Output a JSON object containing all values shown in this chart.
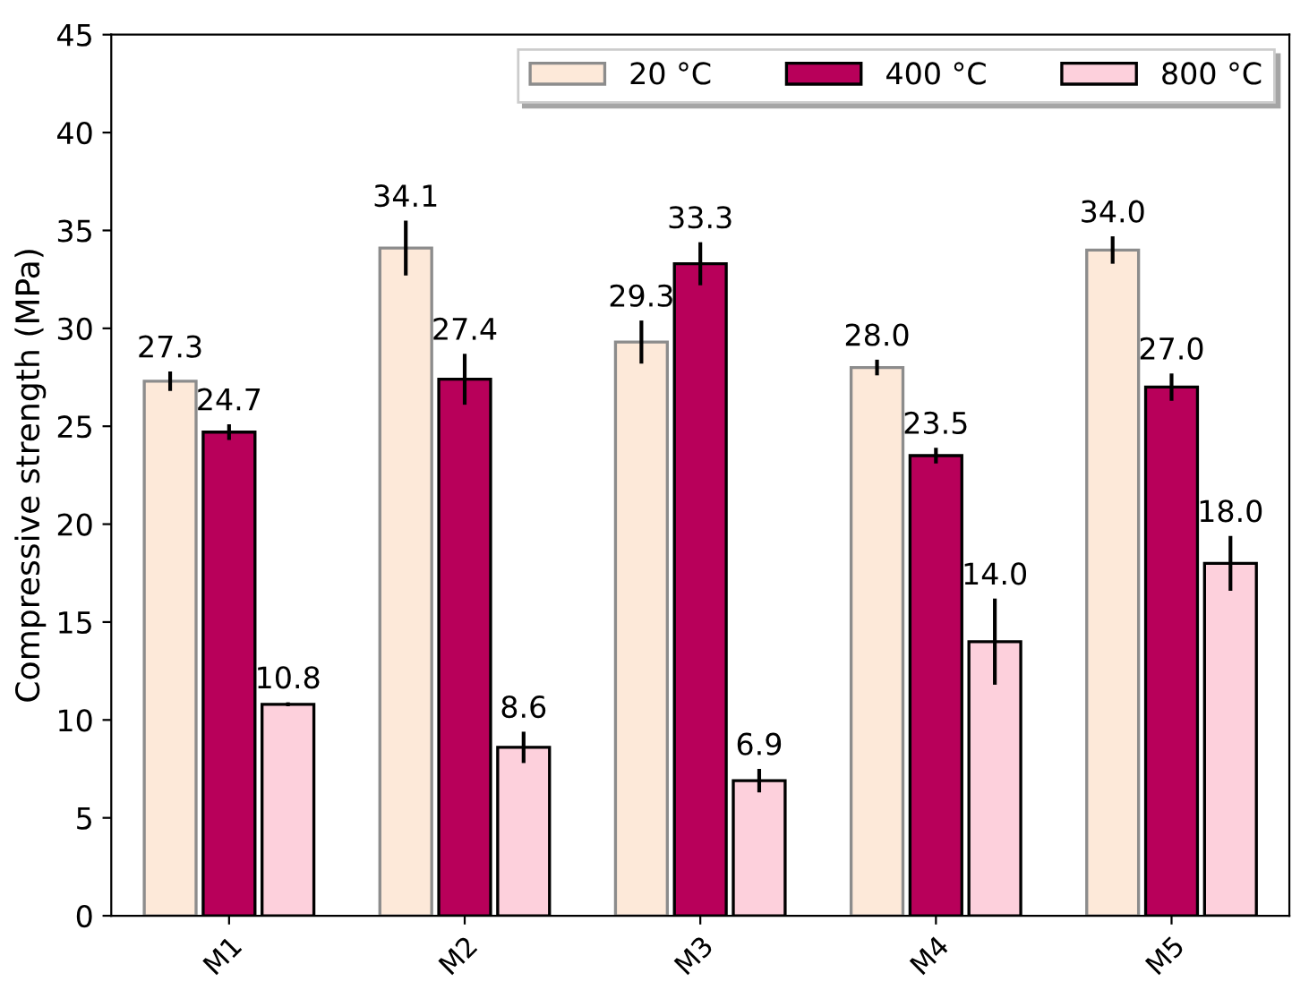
{
  "chart_data": {
    "type": "bar",
    "ylabel": "Compressive strength (MPa)",
    "categories": [
      "M1",
      "M2",
      "M3",
      "M4",
      "M5"
    ],
    "series": [
      {
        "name": "20 °C",
        "color": "#fde9d9",
        "values": [
          27.3,
          34.1,
          29.3,
          28.0,
          34.0
        ],
        "value_labels": [
          "27.3",
          "34.1",
          "29.3",
          "28.0",
          "34.0"
        ],
        "errors": [
          0.5,
          1.4,
          1.1,
          0.4,
          0.7
        ]
      },
      {
        "name": "400 °C",
        "color": "#b8005a",
        "values": [
          24.7,
          27.4,
          33.3,
          23.5,
          27.0
        ],
        "value_labels": [
          "24.7",
          "27.4",
          "33.3",
          "23.5",
          "27.0"
        ],
        "errors": [
          0.4,
          1.3,
          1.1,
          0.4,
          0.7
        ]
      },
      {
        "name": "800 °C",
        "color": "#fdd0dc",
        "values": [
          10.8,
          8.6,
          6.9,
          14.0,
          18.0
        ],
        "value_labels": [
          "10.8",
          "8.6",
          "6.9",
          "14.0",
          "18.0"
        ],
        "errors": [
          0.1,
          0.8,
          0.6,
          2.2,
          1.4
        ]
      }
    ],
    "ylim": [
      0,
      45
    ],
    "yticks": [
      0,
      5,
      10,
      15,
      20,
      25,
      30,
      35,
      40,
      45
    ],
    "grid": false,
    "legend": "top right"
  }
}
